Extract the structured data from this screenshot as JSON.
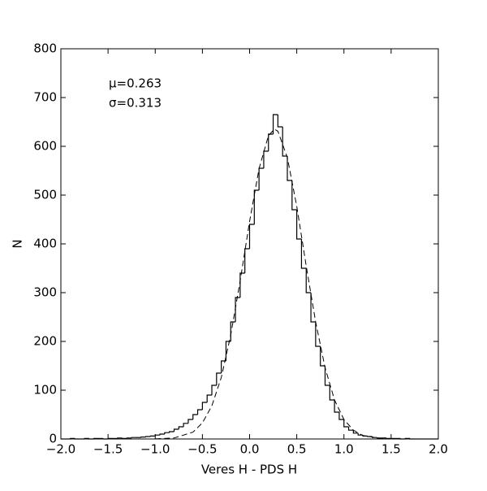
{
  "chart_data": {
    "type": "histogram",
    "xlabel": "Veres H - PDS H",
    "ylabel": "N",
    "annotations": [
      "μ=0.263",
      "σ=0.313"
    ],
    "bins": [
      -2.0,
      -1.95,
      -1.9,
      -1.85,
      -1.8,
      -1.75,
      -1.7,
      -1.65,
      -1.6,
      -1.55,
      -1.5,
      -1.45,
      -1.4,
      -1.35,
      -1.3,
      -1.25,
      -1.2,
      -1.15,
      -1.1,
      -1.05,
      -1.0,
      -0.95,
      -0.9,
      -0.85,
      -0.8,
      -0.75,
      -0.7,
      -0.65,
      -0.6,
      -0.55,
      -0.5,
      -0.45,
      -0.4,
      -0.35,
      -0.3,
      -0.25,
      -0.2,
      -0.15,
      -0.1,
      -0.05,
      0.0,
      0.05,
      0.1,
      0.15,
      0.2,
      0.25,
      0.3,
      0.35,
      0.4,
      0.45,
      0.5,
      0.55,
      0.6,
      0.65,
      0.7,
      0.75,
      0.8,
      0.85,
      0.9,
      0.95,
      1.0,
      1.05,
      1.1,
      1.15,
      1.2,
      1.25,
      1.3,
      1.35,
      1.4,
      1.45,
      1.5,
      1.55,
      1.6,
      1.65,
      1.7,
      1.75,
      1.8,
      1.85,
      1.9,
      1.95,
      2.0
    ],
    "values": [
      0,
      0,
      1,
      0,
      0,
      1,
      0,
      1,
      1,
      0,
      1,
      1,
      2,
      1,
      2,
      3,
      3,
      4,
      5,
      6,
      8,
      10,
      13,
      15,
      20,
      25,
      32,
      40,
      50,
      60,
      75,
      90,
      110,
      135,
      160,
      200,
      240,
      290,
      340,
      390,
      440,
      510,
      555,
      590,
      625,
      665,
      640,
      580,
      530,
      470,
      410,
      350,
      300,
      240,
      190,
      150,
      110,
      80,
      55,
      40,
      25,
      18,
      12,
      8,
      6,
      5,
      3,
      2,
      2,
      1,
      1,
      1,
      0,
      1,
      0,
      0,
      0,
      0,
      0,
      0
    ],
    "color": "#000000",
    "fit": {
      "x": [
        -1.0,
        -0.8,
        -0.6,
        -0.5,
        -0.4,
        -0.3,
        -0.2,
        -0.1,
        0.0,
        0.1,
        0.2,
        0.263,
        0.3,
        0.4,
        0.5,
        0.6,
        0.7,
        0.8,
        0.9,
        1.0,
        1.1,
        1.2,
        1.4,
        1.6
      ],
      "values": [
        0.2,
        2,
        14,
        33,
        68,
        126,
        213,
        324,
        446,
        554,
        622,
        635,
        631,
        577,
        477,
        355,
        240,
        146,
        80,
        40,
        18,
        7,
        1,
        0
      ]
    },
    "xlim": [
      -2.0,
      2.0
    ],
    "xticks": [
      {
        "value": -2.0,
        "label": "−2.0"
      },
      {
        "value": -1.5,
        "label": "−1.5"
      },
      {
        "value": -1.0,
        "label": "−1.0"
      },
      {
        "value": -0.5,
        "label": "−0.5"
      },
      {
        "value": 0.0,
        "label": "0.0"
      },
      {
        "value": 0.5,
        "label": "0.5"
      },
      {
        "value": 1.0,
        "label": "1.0"
      },
      {
        "value": 1.5,
        "label": "1.5"
      },
      {
        "value": 2.0,
        "label": "2.0"
      }
    ],
    "ylim": [
      0,
      800
    ],
    "yticks": [
      0,
      100,
      200,
      300,
      400,
      500,
      600,
      700,
      800
    ]
  }
}
